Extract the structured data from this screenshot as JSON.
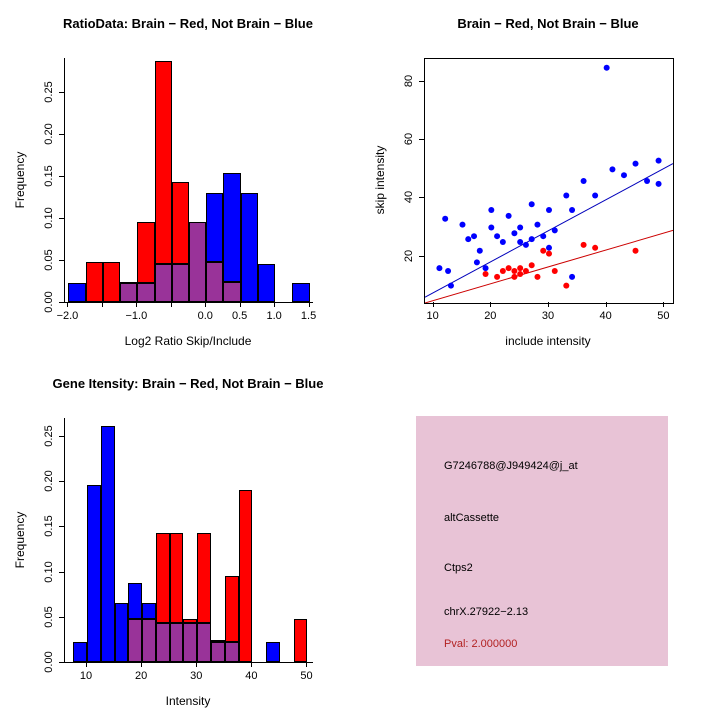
{
  "colors": {
    "red": "#ff0000",
    "blue": "#0000ff",
    "overlap": "#993399",
    "axis": "#000000",
    "fit_line_blue": "#0000bb",
    "fit_line_red": "#cc0000"
  },
  "chart_data": [
    {
      "type": "bar",
      "subtype": "overlaid-histogram",
      "title": "RatioData: Brain − Red, Not Brain − Blue",
      "xlabel": "Log2 Ratio Skip/Include",
      "ylabel": "Frequency",
      "xlim": [
        -2.05,
        1.55
      ],
      "ylim": [
        0,
        0.29
      ],
      "xticks": [
        -2.0,
        -1.5,
        -1.0,
        -0.5,
        0.0,
        0.5,
        1.0,
        1.5
      ],
      "xtick_labels": [
        "−2.0",
        "",
        "−1.0",
        "",
        "0.0",
        "0.5",
        "1.0",
        "1.5"
      ],
      "yticks": [
        0,
        0.05,
        0.1,
        0.15,
        0.2,
        0.25
      ],
      "ytick_labels": [
        "0.00",
        "0.05",
        "0.10",
        "0.15",
        "0.20",
        "0.25"
      ],
      "bin_width": 0.25,
      "legend": {
        "Brain": "red",
        "Not Brain": "blue",
        "overlap": "purple"
      },
      "bins": [
        {
          "x0": -2.0,
          "red": 0.0,
          "blue": 0.022
        },
        {
          "x0": -1.75,
          "red": 0.048,
          "blue": 0.0
        },
        {
          "x0": -1.5,
          "red": 0.048,
          "blue": 0.0
        },
        {
          "x0": -1.25,
          "red": 0.024,
          "blue": 0.022
        },
        {
          "x0": -1.0,
          "red": 0.095,
          "blue": 0.022
        },
        {
          "x0": -0.75,
          "red": 0.286,
          "blue": 0.045
        },
        {
          "x0": -0.5,
          "red": 0.143,
          "blue": 0.045
        },
        {
          "x0": -0.25,
          "red": 0.095,
          "blue": 0.095
        },
        {
          "x0": 0.0,
          "red": 0.048,
          "blue": 0.13
        },
        {
          "x0": 0.25,
          "red": 0.024,
          "blue": 0.153
        },
        {
          "x0": 0.5,
          "red": 0.0,
          "blue": 0.13
        },
        {
          "x0": 0.75,
          "red": 0.0,
          "blue": 0.045
        },
        {
          "x0": 1.0,
          "red": 0.0,
          "blue": 0.0
        },
        {
          "x0": 1.25,
          "red": 0.0,
          "blue": 0.022
        }
      ]
    },
    {
      "type": "scatter",
      "title": "Brain − Red, Not Brain − Blue",
      "xlabel": "include intensity",
      "ylabel": "skip intensity",
      "xlim": [
        8.5,
        51.5
      ],
      "ylim": [
        4,
        88
      ],
      "xticks": [
        10,
        20,
        30,
        40,
        50
      ],
      "xtick_labels": [
        "10",
        "20",
        "30",
        "40",
        "50"
      ],
      "yticks": [
        20,
        40,
        60,
        80
      ],
      "ytick_labels": [
        "20",
        "40",
        "60",
        "80"
      ],
      "series": [
        {
          "name": "Not Brain",
          "color": "#0000ff",
          "points": [
            [
              11,
              16
            ],
            [
              12,
              33
            ],
            [
              12.5,
              15
            ],
            [
              13,
              10
            ],
            [
              15,
              31
            ],
            [
              16,
              26
            ],
            [
              17,
              27
            ],
            [
              17.5,
              18
            ],
            [
              18,
              22
            ],
            [
              19,
              16
            ],
            [
              20,
              36
            ],
            [
              20,
              30
            ],
            [
              21,
              27
            ],
            [
              22,
              25
            ],
            [
              23,
              34
            ],
            [
              24,
              28
            ],
            [
              25,
              25
            ],
            [
              25,
              30
            ],
            [
              26,
              24
            ],
            [
              27,
              38
            ],
            [
              27,
              26
            ],
            [
              28,
              31
            ],
            [
              29,
              27
            ],
            [
              30,
              36
            ],
            [
              30,
              23
            ],
            [
              31,
              29
            ],
            [
              33,
              41
            ],
            [
              34,
              36
            ],
            [
              34,
              13
            ],
            [
              36,
              46
            ],
            [
              38,
              41
            ],
            [
              40,
              85
            ],
            [
              41,
              50
            ],
            [
              43,
              48
            ],
            [
              45,
              52
            ],
            [
              47,
              46
            ],
            [
              49,
              53
            ],
            [
              49,
              45
            ]
          ]
        },
        {
          "name": "Brain",
          "color": "#ff0000",
          "points": [
            [
              19,
              14
            ],
            [
              21,
              13
            ],
            [
              22,
              15
            ],
            [
              23,
              16
            ],
            [
              24,
              15
            ],
            [
              24,
              13
            ],
            [
              25,
              16
            ],
            [
              25,
              14
            ],
            [
              26,
              15
            ],
            [
              27,
              17
            ],
            [
              28,
              13
            ],
            [
              29,
              22
            ],
            [
              30,
              21
            ],
            [
              31,
              15
            ],
            [
              33,
              10
            ],
            [
              36,
              24
            ],
            [
              38,
              23
            ],
            [
              45,
              22
            ]
          ]
        }
      ],
      "fit_lines": [
        {
          "name": "not-brain-fit",
          "color": "#0000bb",
          "x1": 8.5,
          "y1": 6,
          "x2": 51.5,
          "y2": 52
        },
        {
          "name": "brain-fit",
          "color": "#cc0000",
          "x1": 8.5,
          "y1": 4,
          "x2": 51.5,
          "y2": 29
        }
      ]
    },
    {
      "type": "bar",
      "subtype": "overlaid-histogram",
      "title": "Gene Itensity: Brain − Red, Not Brain − Blue",
      "xlabel": "Intensity",
      "ylabel": "Frequency",
      "xlim": [
        6,
        51
      ],
      "ylim": [
        0,
        0.27
      ],
      "xticks": [
        10,
        20,
        30,
        40,
        50
      ],
      "xtick_labels": [
        "10",
        "20",
        "30",
        "40",
        "50"
      ],
      "yticks": [
        0,
        0.05,
        0.1,
        0.15,
        0.2,
        0.25
      ],
      "ytick_labels": [
        "0.00",
        "0.05",
        "0.10",
        "0.15",
        "0.20",
        "0.25"
      ],
      "bin_width": 2.5,
      "legend": {
        "Brain": "red",
        "Not Brain": "blue",
        "overlap": "purple"
      },
      "bins": [
        {
          "x0": 7.5,
          "red": 0.0,
          "blue": 0.022
        },
        {
          "x0": 10.0,
          "red": 0.0,
          "blue": 0.196
        },
        {
          "x0": 12.5,
          "red": 0.0,
          "blue": 0.261
        },
        {
          "x0": 15.0,
          "red": 0.0,
          "blue": 0.065
        },
        {
          "x0": 17.5,
          "red": 0.048,
          "blue": 0.087
        },
        {
          "x0": 20.0,
          "red": 0.048,
          "blue": 0.065
        },
        {
          "x0": 22.5,
          "red": 0.143,
          "blue": 0.043
        },
        {
          "x0": 25.0,
          "red": 0.143,
          "blue": 0.043
        },
        {
          "x0": 27.5,
          "red": 0.048,
          "blue": 0.043
        },
        {
          "x0": 30.0,
          "red": 0.143,
          "blue": 0.043
        },
        {
          "x0": 32.5,
          "red": 0.024,
          "blue": 0.022
        },
        {
          "x0": 35.0,
          "red": 0.095,
          "blue": 0.022
        },
        {
          "x0": 37.5,
          "red": 0.19,
          "blue": 0.0
        },
        {
          "x0": 40.0,
          "red": 0.0,
          "blue": 0.0
        },
        {
          "x0": 42.5,
          "red": 0.0,
          "blue": 0.022
        },
        {
          "x0": 45.0,
          "red": 0.0,
          "blue": 0.0
        },
        {
          "x0": 47.5,
          "red": 0.048,
          "blue": 0.0
        }
      ]
    }
  ],
  "info_panel": {
    "bg": "#e8c3d6",
    "lines": [
      {
        "text": "G7246788@J949424@j_at",
        "color": "#000000"
      },
      {
        "text": "altCassette",
        "color": "#000000"
      },
      {
        "text": "Ctps2",
        "color": "#000000"
      },
      {
        "text": "chrX.27922−2.13",
        "color": "#000000"
      },
      {
        "text": "Pval: 2.000000",
        "color": "#b22222"
      }
    ]
  }
}
